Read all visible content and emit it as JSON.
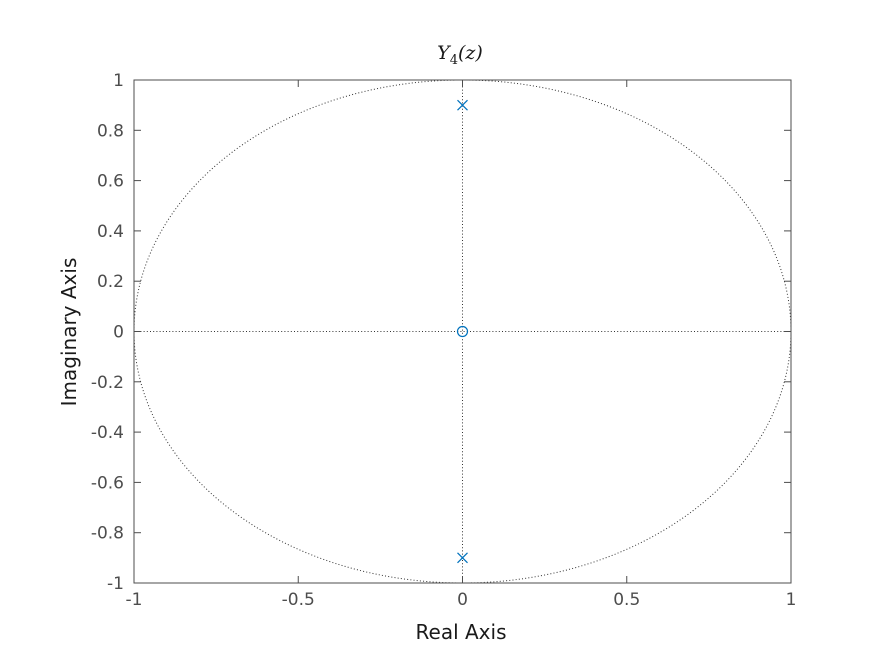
{
  "chart_data": {
    "type": "scatter",
    "title": "Y4(z)",
    "title_main": "Y",
    "title_subscript": "4",
    "title_rest": "(z)",
    "xlabel": "Real Axis",
    "ylabel": "Imaginary Axis",
    "xlim": [
      -1,
      1
    ],
    "ylim": [
      -1,
      1
    ],
    "xticks": [
      -1,
      -0.5,
      0,
      0.5,
      1
    ],
    "xtick_labels": [
      "-1",
      "-0.5",
      "0",
      "0.5",
      "1"
    ],
    "yticks": [
      -1,
      -0.8,
      -0.6,
      -0.4,
      -0.2,
      0,
      0.2,
      0.4,
      0.6,
      0.8,
      1
    ],
    "ytick_labels": [
      "-1",
      "-0.8",
      "-0.6",
      "-0.4",
      "-0.2",
      "0",
      "0.2",
      "0.4",
      "0.6",
      "0.8",
      "1"
    ],
    "grid": false,
    "unit_circle": true,
    "reference_lines": {
      "x": 0,
      "y": 0
    },
    "poles": [
      {
        "re": 0,
        "im": 0.9
      },
      {
        "re": 0,
        "im": -0.9
      }
    ],
    "zeros": [
      {
        "re": 0,
        "im": 0
      }
    ],
    "marker_color": "#0072bd",
    "axis_color": "#4d4d4d"
  }
}
